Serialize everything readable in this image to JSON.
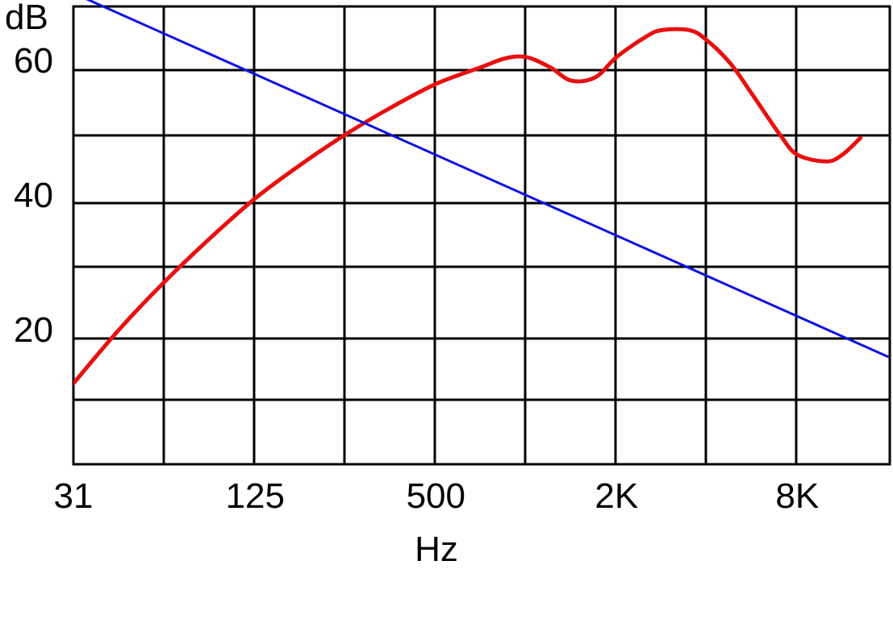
{
  "chart_data": {
    "type": "line",
    "title": "",
    "xlabel": "Hz",
    "ylabel": "dB",
    "x_scale": "log2",
    "xlim": [
      31,
      16000
    ],
    "ylim": [
      0,
      70
    ],
    "grid": true,
    "x_ticks": [
      {
        "value": 31,
        "label": "31"
      },
      {
        "value": 125,
        "label": "125"
      },
      {
        "value": 500,
        "label": "500"
      },
      {
        "value": 2000,
        "label": "2K"
      },
      {
        "value": 8000,
        "label": "8K"
      }
    ],
    "y_ticks": [
      {
        "value": 20,
        "label": "20"
      },
      {
        "value": 40,
        "label": "40"
      },
      {
        "value": 60,
        "label": "60"
      }
    ],
    "series": [
      {
        "name": "",
        "color": "#e81010",
        "x": [
          31,
          44,
          62,
          88,
          125,
          177,
          250,
          354,
          500,
          707,
          850,
          1000,
          1200,
          1414,
          1700,
          2000,
          2500,
          2828,
          3500,
          4000,
          4800,
          5657,
          7000,
          8000,
          10000,
          11314,
          13000
        ],
        "y": [
          12,
          20,
          27,
          33.5,
          39.5,
          44.5,
          49,
          53,
          56.5,
          59,
          60.3,
          60.5,
          59,
          57,
          57.5,
          60.5,
          63.5,
          64.5,
          64.5,
          63,
          59.5,
          55,
          49,
          46,
          45,
          46,
          48.5
        ]
      },
      {
        "name": "",
        "color": "#1010e0",
        "x": [
          31,
          16000
        ],
        "y": [
          70,
          16
        ]
      }
    ]
  }
}
